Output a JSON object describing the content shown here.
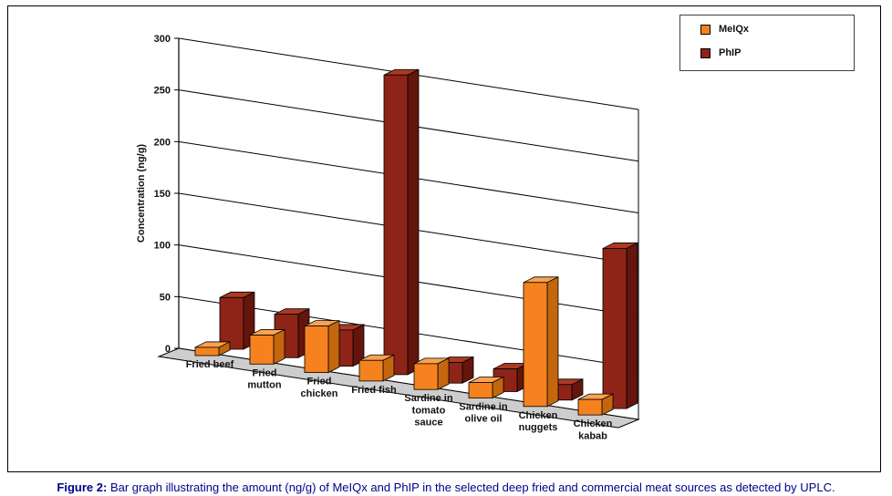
{
  "figure": {
    "caption_prefix": "Figure 2:",
    "caption_text": " Bar graph illustrating the amount (ng/g) of MeIQx and PhIP in the selected deep fried and commercial meat sources as detected by UPLC."
  },
  "chart_data": {
    "type": "bar",
    "subtype": "3d-column",
    "title": "",
    "xlabel": "",
    "ylabel": "Concentration (ng/g)",
    "ylim": [
      0,
      300
    ],
    "ytick_step": 50,
    "ytick_labels": [
      "0",
      "50",
      "100",
      "150",
      "200",
      "250",
      "300"
    ],
    "grid": true,
    "legend_position": "top-right",
    "categories": [
      "Fried beef",
      "Fried mutton",
      "Fried chicken",
      "Fried fish",
      "Sardine in tomato sauce",
      "Sardine in olive oil",
      "Chicken nuggets",
      "Chicken kabab"
    ],
    "category_lines": [
      [
        "Fried beef"
      ],
      [
        "Fried",
        "mutton"
      ],
      [
        "Fried",
        "chicken"
      ],
      [
        "Fried fish"
      ],
      [
        "Sardine in",
        "tomato",
        "sauce"
      ],
      [
        "Sardine in",
        "olive oil"
      ],
      [
        "Chicken",
        "nuggets"
      ],
      [
        "Chicken",
        "kabab"
      ]
    ],
    "series": [
      {
        "name": "MeIQx",
        "color": "#F5821F",
        "color_top": "#FAA24F",
        "color_side": "#C4660D",
        "values": [
          8,
          28,
          45,
          20,
          25,
          15,
          120,
          15
        ]
      },
      {
        "name": "PhIP",
        "color": "#8E2317",
        "color_top": "#AC3A22",
        "color_side": "#64150C",
        "values": [
          50,
          42,
          35,
          290,
          20,
          22,
          15,
          155
        ]
      }
    ]
  }
}
